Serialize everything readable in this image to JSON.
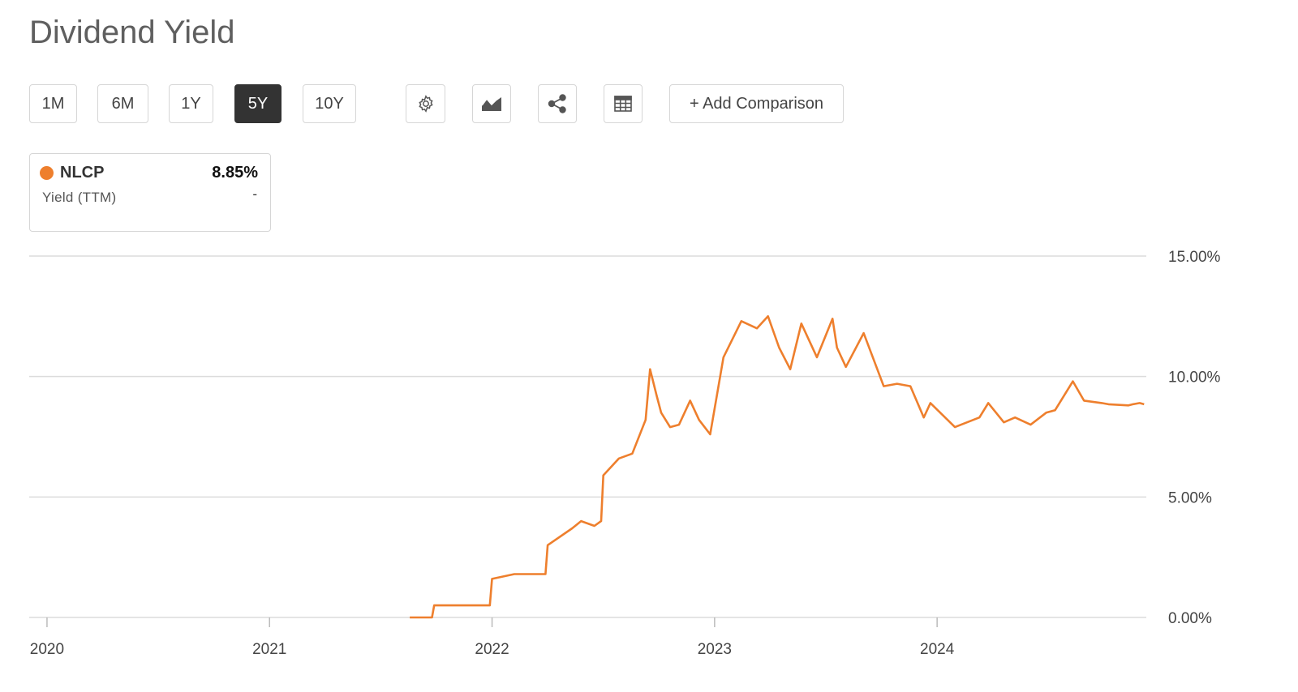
{
  "page": {
    "title": "Dividend Yield"
  },
  "toolbar": {
    "ranges": [
      {
        "label": "1M",
        "active": false
      },
      {
        "label": "6M",
        "active": false
      },
      {
        "label": "1Y",
        "active": false
      },
      {
        "label": "5Y",
        "active": true
      },
      {
        "label": "10Y",
        "active": false
      }
    ],
    "icons": [
      "gear-icon",
      "chart-type-icon",
      "share-icon",
      "table-icon"
    ],
    "add_comparison_label": "+ Add Comparison"
  },
  "legend": {
    "ticker": "NLCP",
    "value": "8.85%",
    "metric": "Yield (TTM)",
    "change": "-",
    "color": "#ee7f2d"
  },
  "chart_data": {
    "type": "line",
    "title": "Dividend Yield",
    "xlabel": "",
    "ylabel": "",
    "x_ticks": [
      "2020",
      "2021",
      "2022",
      "2023",
      "2024"
    ],
    "y_ticks": [
      "0.00%",
      "5.00%",
      "10.00%",
      "15.00%"
    ],
    "ylim": [
      0,
      15
    ],
    "xlim": [
      2019.92,
      2024.94
    ],
    "grid": true,
    "series": [
      {
        "name": "NLCP",
        "color": "#ee7f2d",
        "x": [
          2021.63,
          2021.73,
          2021.74,
          2021.84,
          2021.99,
          2022.0,
          2022.1,
          2022.24,
          2022.25,
          2022.36,
          2022.4,
          2022.46,
          2022.49,
          2022.5,
          2022.57,
          2022.63,
          2022.69,
          2022.71,
          2022.74,
          2022.76,
          2022.8,
          2022.84,
          2022.89,
          2022.93,
          2022.98,
          2023.04,
          2023.12,
          2023.19,
          2023.24,
          2023.29,
          2023.34,
          2023.39,
          2023.46,
          2023.53,
          2023.55,
          2023.59,
          2023.67,
          2023.76,
          2023.82,
          2023.88,
          2023.94,
          2023.97,
          2024.08,
          2024.19,
          2024.23,
          2024.3,
          2024.35,
          2024.42,
          2024.49,
          2024.53,
          2024.61,
          2024.66,
          2024.74,
          2024.77,
          2024.86,
          2024.88,
          2024.91,
          2024.93
        ],
        "y": [
          0.0,
          0.0,
          0.5,
          0.5,
          0.5,
          1.6,
          1.8,
          1.8,
          3.0,
          3.7,
          4.0,
          3.8,
          4.0,
          5.9,
          6.6,
          6.8,
          8.2,
          10.3,
          9.2,
          8.5,
          7.9,
          8.0,
          9.0,
          8.2,
          7.6,
          10.8,
          12.3,
          12.0,
          12.5,
          11.2,
          10.3,
          12.2,
          10.8,
          12.4,
          11.2,
          10.4,
          11.8,
          9.6,
          9.7,
          9.6,
          8.3,
          8.9,
          7.9,
          8.3,
          8.9,
          8.1,
          8.3,
          8.0,
          8.5,
          8.6,
          9.8,
          9.0,
          8.9,
          8.85,
          8.8,
          8.85,
          8.9,
          8.85
        ]
      }
    ]
  }
}
